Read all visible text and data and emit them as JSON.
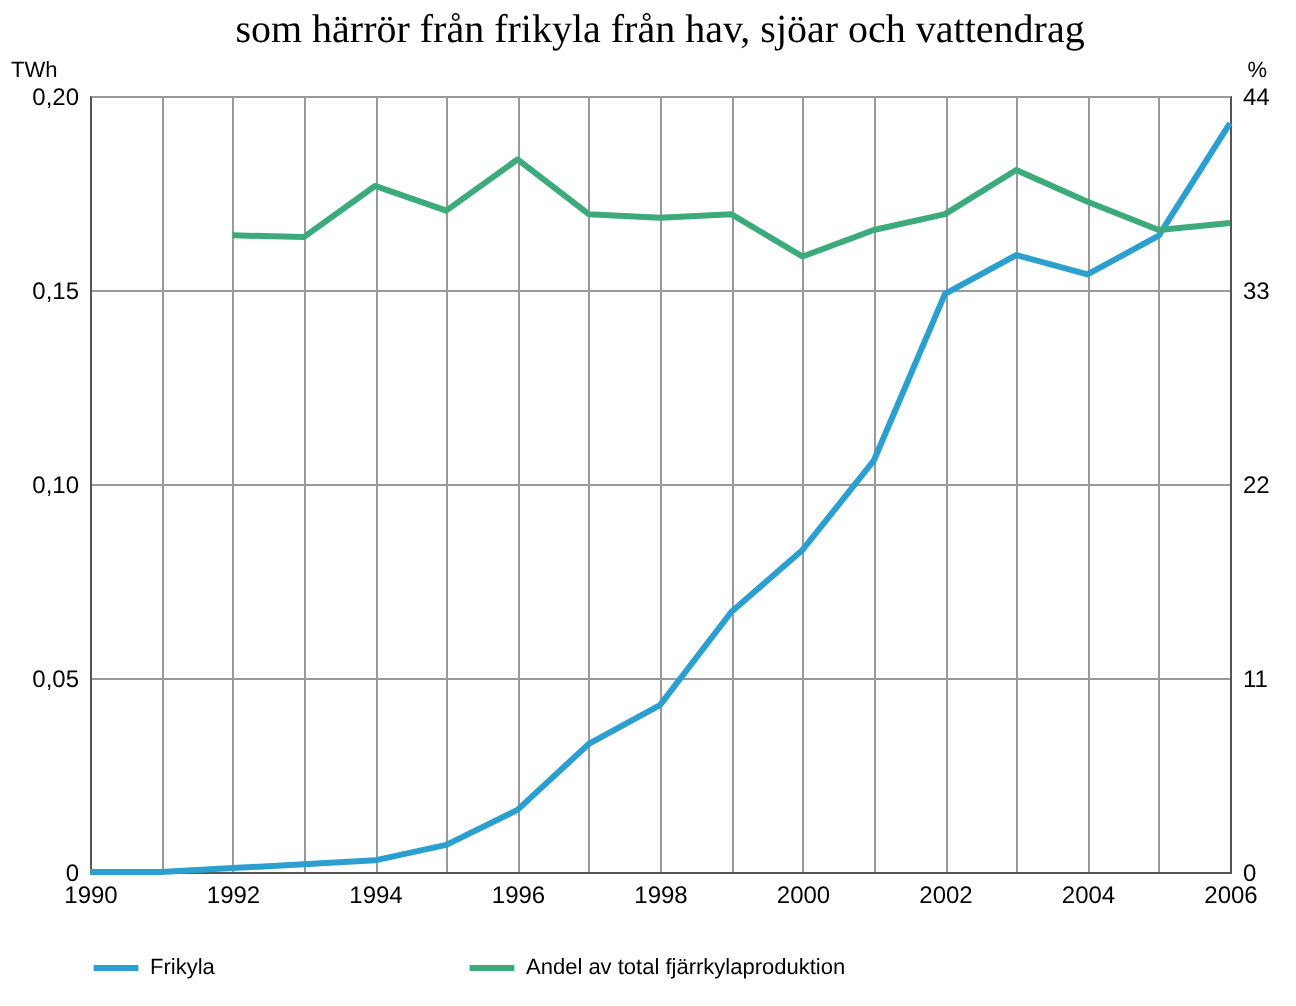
{
  "chart_data": {
    "type": "line",
    "title": "som härrör från frikyla från hav, sjöar och vattendrag",
    "ylabel": "TWh",
    "y2label": "%",
    "x": [
      1990,
      1991,
      1992,
      1993,
      1994,
      1995,
      1996,
      1997,
      1998,
      1999,
      2000,
      2001,
      2002,
      2003,
      2004,
      2005,
      2006
    ],
    "series": [
      {
        "name": "Frikyla",
        "color": "#2a9fd0",
        "values": [
          0,
          0,
          0.001,
          0.002,
          0.003,
          0.007,
          0.016,
          0.033,
          0.043,
          0.067,
          0.083,
          0.106,
          0.149,
          0.159,
          0.154,
          0.164,
          0.193
        ]
      },
      {
        "name": "Andel av total fjärrkylaproduktion",
        "color": "#3daa7c",
        "axis": "y2",
        "values": [
          null,
          null,
          36.1,
          36.0,
          38.9,
          37.5,
          40.4,
          37.3,
          37.1,
          37.3,
          34.9,
          36.4,
          37.3,
          39.8,
          38.0,
          36.4,
          36.8
        ]
      }
    ],
    "xlim": [
      1990,
      2006
    ],
    "xticks": [
      1990,
      {
        "value": 1991,
        "label": null
      },
      1992,
      {
        "value": 1993,
        "label": null
      },
      1994,
      {
        "value": 1995,
        "label": null
      },
      1996,
      {
        "value": 1997,
        "label": null
      },
      1998,
      {
        "value": 1999,
        "label": null
      },
      2000,
      {
        "value": 2001,
        "label": null
      },
      2002,
      {
        "value": 2003,
        "label": null
      },
      2004,
      {
        "value": 2005,
        "label": null
      },
      2006
    ],
    "ylim": [
      0,
      0.2
    ],
    "yticks": [
      {
        "value": 0,
        "label": "0"
      },
      {
        "value": 0.05,
        "label": "0,05"
      },
      {
        "value": 0.1,
        "label": "0,10"
      },
      {
        "value": 0.15,
        "label": "0,15"
      },
      {
        "value": 0.2,
        "label": "0,20"
      }
    ],
    "y2lim": [
      0,
      44
    ],
    "y2ticks": [
      0,
      11,
      22,
      33,
      44
    ],
    "grid": true,
    "legend": "bottom",
    "line_style": "solid",
    "marker": "none"
  }
}
